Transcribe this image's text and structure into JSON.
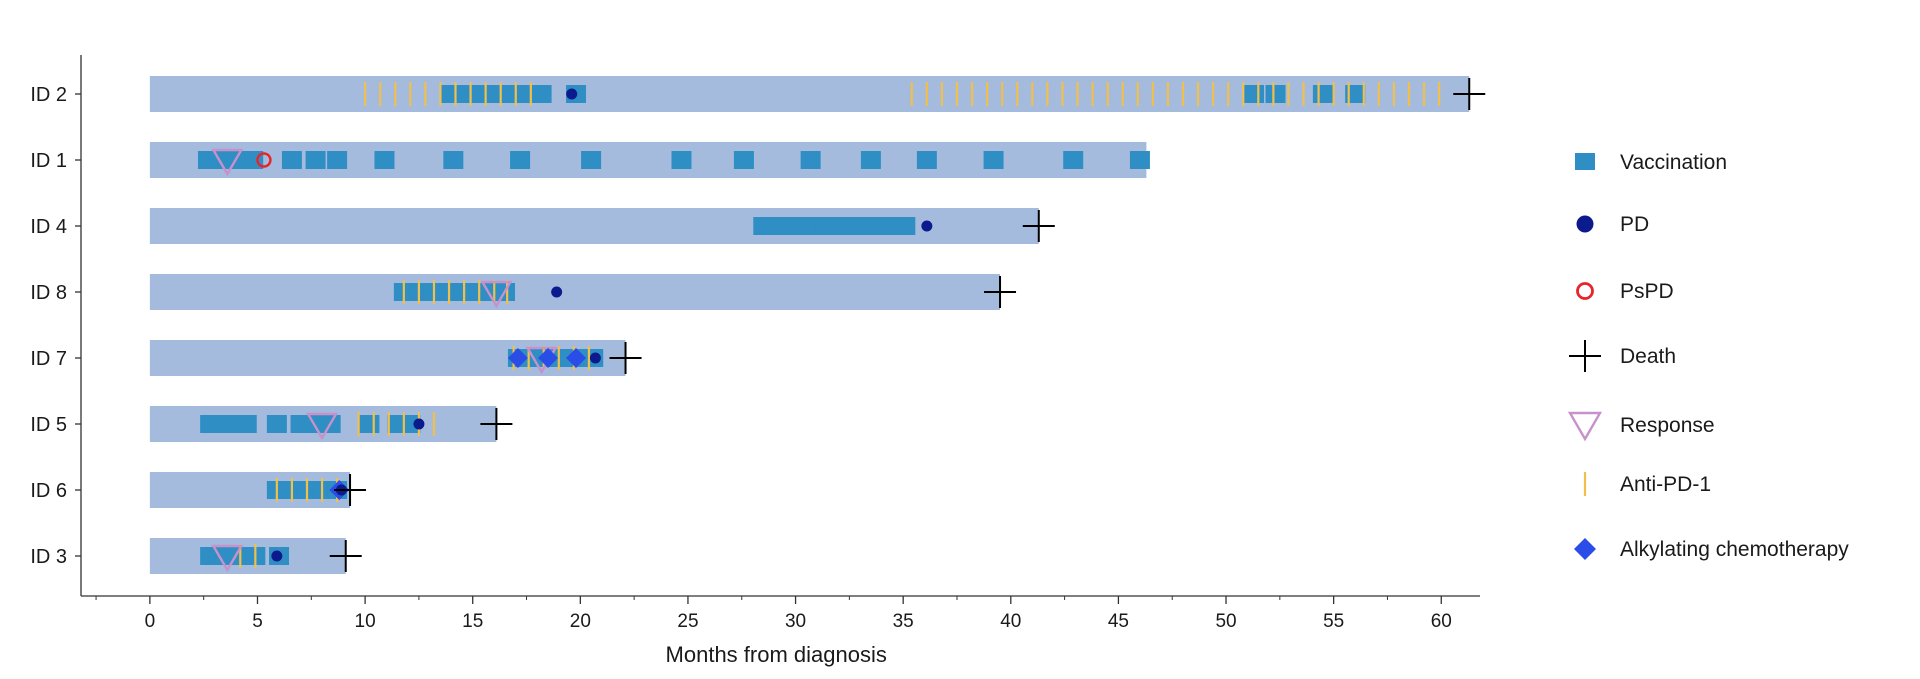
{
  "chart_data": {
    "type": "swimmer",
    "title": "",
    "xlabel": "Months from diagnosis",
    "ylabel": "",
    "xlim": [
      -3.2,
      61.8
    ],
    "xticks": [
      0,
      5,
      10,
      15,
      20,
      25,
      30,
      35,
      40,
      45,
      50,
      55,
      60
    ],
    "patients": [
      {
        "id": "ID 2",
        "duration": 61.3,
        "vaccinations": [
          14,
          14.7,
          15.4,
          16.1,
          16.8,
          17.5,
          18.2,
          19.8,
          51.3,
          52.3,
          54.5,
          56.0
        ],
        "pd": [
          19.6
        ],
        "pspd": [],
        "death": [
          61.3
        ],
        "response": [],
        "anti_pd1": [
          10.0,
          10.7,
          11.4,
          12.1,
          12.8,
          13.5,
          14.2,
          14.9,
          15.6,
          16.3,
          17.0,
          17.7,
          35.4,
          36.1,
          36.8,
          37.5,
          38.2,
          38.9,
          39.6,
          40.3,
          41.0,
          41.7,
          42.4,
          43.1,
          43.8,
          44.5,
          45.2,
          45.9,
          46.6,
          47.3,
          48.0,
          48.7,
          49.4,
          50.1,
          50.8,
          51.5,
          52.2,
          52.9,
          53.6,
          54.3,
          55.0,
          55.7,
          56.4,
          57.1,
          57.8,
          58.5,
          59.2,
          59.9
        ],
        "alkylating": []
      },
      {
        "id": "ID 1",
        "duration": 46.3,
        "vaccinations": [
          2.7,
          3.4,
          4.1,
          4.8,
          6.6,
          7.7,
          8.7,
          10.9,
          14.1,
          17.2,
          20.5,
          24.7,
          27.6,
          30.7,
          33.5,
          36.1,
          39.2,
          42.9,
          46.0
        ],
        "pd": [],
        "pspd": [
          5.3
        ],
        "death": [],
        "response": [
          3.6
        ],
        "anti_pd1": [],
        "alkylating": []
      },
      {
        "id": "ID 4",
        "duration": 41.3,
        "vaccinations": [
          28.5,
          29.2,
          29.9,
          30.6,
          31.4,
          32.3,
          33.0,
          33.7,
          34.4,
          35.1
        ],
        "pd": [
          36.1
        ],
        "pspd": [],
        "death": [
          41.3
        ],
        "response": [],
        "anti_pd1": [],
        "alkylating": []
      },
      {
        "id": "ID 8",
        "duration": 39.5,
        "vaccinations": [
          11.8,
          12.5,
          13.2,
          13.9,
          14.6,
          15.3,
          16.0,
          16.5
        ],
        "pd": [
          18.9
        ],
        "pspd": [],
        "death": [
          39.5
        ],
        "response": [
          16.1
        ],
        "anti_pd1": [
          11.8,
          12.5,
          13.2,
          13.9,
          14.6,
          15.3,
          16.0,
          16.6
        ],
        "alkylating": []
      },
      {
        "id": "ID 7",
        "duration": 22.1,
        "vaccinations": [
          17.1,
          17.8,
          18.5,
          19.2,
          19.9,
          20.6
        ],
        "pd": [
          20.7
        ],
        "pspd": [],
        "death": [
          22.1
        ],
        "response": [
          18.2
        ],
        "anti_pd1": [
          16.9,
          17.6,
          18.3,
          19.0,
          19.7,
          20.4
        ],
        "alkylating": [
          17.1,
          18.5,
          19.8
        ]
      },
      {
        "id": "ID 5",
        "duration": 16.1,
        "vaccinations": [
          2.8,
          3.4,
          4.0,
          4.5,
          5.9,
          7.0,
          7.7,
          8.4,
          10.2,
          11.5,
          12.1
        ],
        "pd": [
          12.5
        ],
        "pspd": [],
        "death": [
          16.1
        ],
        "response": [
          8.0
        ],
        "anti_pd1": [
          9.7,
          10.4,
          11.1,
          11.8,
          12.5,
          13.2
        ],
        "alkylating": []
      },
      {
        "id": "ID 6",
        "duration": 9.3,
        "vaccinations": [
          5.9,
          6.6,
          7.3,
          8.0,
          8.7
        ],
        "pd": [
          8.9
        ],
        "pspd": [],
        "death": [
          9.3
        ],
        "response": [],
        "anti_pd1": [
          5.9,
          6.6,
          7.3,
          8.0,
          8.7
        ],
        "alkylating": [
          8.8
        ]
      },
      {
        "id": "ID 3",
        "duration": 9.1,
        "vaccinations": [
          2.8,
          3.5,
          4.2,
          4.9,
          6.0
        ],
        "pd": [
          5.9
        ],
        "pspd": [],
        "death": [
          9.1
        ],
        "response": [
          3.6
        ],
        "anti_pd1": [
          4.2,
          4.9
        ],
        "alkylating": []
      }
    ],
    "legend": [
      {
        "key": "vaccination",
        "label": "Vaccination"
      },
      {
        "key": "pd",
        "label": "PD"
      },
      {
        "key": "pspd",
        "label": "PsPD"
      },
      {
        "key": "death",
        "label": "Death"
      },
      {
        "key": "response",
        "label": "Response"
      },
      {
        "key": "anti_pd1",
        "label": "Anti-PD-1"
      },
      {
        "key": "alkylating",
        "label": "Alkylating chemotherapy"
      }
    ],
    "legend_position": "right",
    "colors": {
      "bar": "#a5bbdd",
      "vaccination": "#2f8fc4",
      "pd": "#0b1a8c",
      "pspd": "#e8242a",
      "death": "#000000",
      "response": "#c891cc",
      "anti_pd1": "#f0bf4c",
      "alkylating": "#2a4de8",
      "axis": "#333333",
      "text": "#1a1a1a"
    }
  }
}
